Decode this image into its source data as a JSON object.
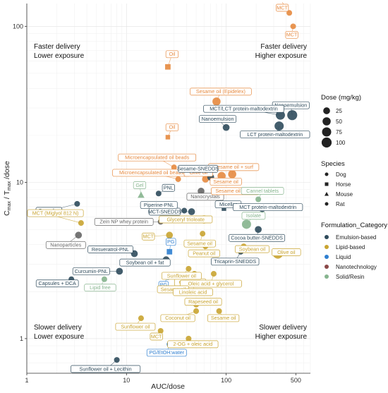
{
  "chart_data": {
    "type": "scatter",
    "xlabel": "AUC/dose",
    "ylabel": "C_max / T_max /dose",
    "xscale": "log",
    "yscale": "log",
    "xlim": [
      1,
      700
    ],
    "ylim": [
      0.6,
      140
    ],
    "xticks": [
      {
        "v": 1,
        "label": "1"
      },
      {
        "v": 10,
        "label": "10"
      },
      {
        "v": 100,
        "label": "100"
      },
      {
        "v": 500,
        "label": "500"
      }
    ],
    "yticks": [
      {
        "v": 1,
        "label": "1"
      },
      {
        "v": 10,
        "label": "10"
      },
      {
        "v": 100,
        "label": "100"
      }
    ],
    "grid": true,
    "quadrants": {
      "top_left": [
        "Faster delivery",
        "Lower exposure"
      ],
      "top_right": [
        "Faster delivery",
        "Higher exposure"
      ],
      "bottom_left": [
        "Slower delivery",
        "Lower exposure"
      ],
      "bottom_right": [
        "Slower delivery",
        "Higher exposure"
      ]
    },
    "categories": [
      {
        "name": "Emulsion-based",
        "color": "#2f4b5c"
      },
      {
        "name": "Lipid-based",
        "color": "#c9a431"
      },
      {
        "name": "Liquid",
        "color": "#2f7fd0"
      },
      {
        "name": "Nanotechnology",
        "color": "#8a4848"
      },
      {
        "name": "Solid/Resin",
        "color": "#86b48e"
      }
    ],
    "oil_color": "#e6893f",
    "legend": {
      "dose_title": "Dose (mg/kg)",
      "dose_values": [
        25,
        50,
        75,
        100
      ],
      "species_title": "Species",
      "species": [
        "Dog",
        "Horse",
        "Mouse",
        "Rat"
      ],
      "category_title": "Formulation_Category"
    },
    "points": [
      {
        "label": "MCT",
        "x": 430,
        "y": 122,
        "cat": "oil",
        "dose": 10,
        "species": "Rat"
      },
      {
        "label": "MCT",
        "x": 470,
        "y": 100,
        "cat": "oil",
        "dose": 10,
        "species": "Rat"
      },
      {
        "label": "Oil",
        "x": 26,
        "y": 55,
        "cat": "oil",
        "dose": 25,
        "species": "Horse"
      },
      {
        "label": "Sesame oil (Epidelex)",
        "x": 80,
        "y": 33,
        "cat": "oil",
        "dose": 50,
        "species": "Rat"
      },
      {
        "label": "Nanoemulsion",
        "x": 460,
        "y": 27,
        "cat": "emulsion",
        "dose": 100,
        "species": "Rat"
      },
      {
        "label": "MCT/LCT protein-maltodextrin",
        "x": 350,
        "y": 27,
        "cat": "emulsion",
        "dose": 75,
        "species": "Rat"
      },
      {
        "label": "LCT protein-maltodextrin",
        "x": 340,
        "y": 23,
        "cat": "emulsion",
        "dose": 75,
        "species": "Rat"
      },
      {
        "label": "Nanoemulsion",
        "x": 100,
        "y": 22.5,
        "cat": "emulsion",
        "dose": 25,
        "species": "Rat"
      },
      {
        "label": "Oil",
        "x": 26,
        "y": 19.5,
        "cat": "oil",
        "dose": 10,
        "species": "Horse"
      },
      {
        "label": "Microencapsulated oil beads",
        "x": 30,
        "y": 12.5,
        "cat": "oil",
        "dose": 10,
        "species": "Rat"
      },
      {
        "label": "Microencapsulated oil beads",
        "x": 33,
        "y": 10.5,
        "cat": "oil",
        "dose": 10,
        "species": "Rat"
      },
      {
        "label": "Sesame oil + surf",
        "x": 115,
        "y": 11.3,
        "cat": "oil",
        "dose": 50,
        "species": "Rat"
      },
      {
        "label": "Sesame oil",
        "x": 90,
        "y": 11,
        "cat": "oil",
        "dose": 50,
        "species": "Rat"
      },
      {
        "label": "Olive oil",
        "x": 62,
        "y": 10.5,
        "cat": "oil",
        "dose": 25,
        "species": "Rat"
      },
      {
        "label": "Sesame-SNEDDS",
        "x": 70,
        "y": 10.8,
        "cat": "emulsion",
        "dose": 25,
        "species": "Rat"
      },
      {
        "label": "Gel",
        "x": 14,
        "y": 8.3,
        "cat": "solid",
        "dose": 25,
        "species": "Mouse"
      },
      {
        "label": "PNL",
        "x": 21,
        "y": 8.5,
        "cat": "emulsion",
        "dose": 10,
        "species": "Rat"
      },
      {
        "label": "Capsules",
        "x": 3.2,
        "y": 7.3,
        "cat": "emulsion",
        "dose": 10,
        "species": "Dog"
      },
      {
        "label": "Nanocrystals",
        "x": 56,
        "y": 8.8,
        "cat": "nano",
        "dose": 25,
        "species": "Rat"
      },
      {
        "label": "Sesame oil (LCT)",
        "x": 108,
        "y": 8.8,
        "cat": "oil",
        "dose": 25,
        "species": "Rat"
      },
      {
        "label": "Cannel tablets",
        "x": 210,
        "y": 7.8,
        "cat": "solid",
        "dose": 10,
        "species": "Rat"
      },
      {
        "label": "MCT-SNEDDS",
        "x": 45,
        "y": 6.5,
        "cat": "emulsion",
        "dose": 25,
        "species": "Rat"
      },
      {
        "label": "Piperine-PNL",
        "x": 38,
        "y": 6.6,
        "cat": "emulsion",
        "dose": 10,
        "species": "Rat"
      },
      {
        "label": "Micellar",
        "x": 95,
        "y": 6.8,
        "cat": "emulsion",
        "dose": 10,
        "species": "Horse"
      },
      {
        "label": "MCT protein-maltodextrin",
        "x": 230,
        "y": 6.8,
        "cat": "emulsion",
        "dose": 25,
        "species": "Rat"
      },
      {
        "label": "MCT (Miglyol 812 N)",
        "x": 3.5,
        "y": 5.5,
        "cat": "lipid",
        "dose": 10,
        "species": "Rat"
      },
      {
        "label": "Nanoparticles",
        "x": 3.3,
        "y": 4.6,
        "cat": "nano",
        "dose": 25,
        "species": "Rat"
      },
      {
        "label": "Zein NP whey protein",
        "x": 22,
        "y": 5.6,
        "cat": "nano",
        "dose": 10,
        "species": "Rat"
      },
      {
        "label": "Glyceryl trioleate",
        "x": 60,
        "y": 5.8,
        "cat": "lipid",
        "dose": 50,
        "species": "Rat"
      },
      {
        "label": "Isolate",
        "x": 160,
        "y": 5.4,
        "cat": "solid",
        "dose": 75,
        "species": "Rat"
      },
      {
        "label": "Cocoa butter-SNEDDS",
        "x": 210,
        "y": 5,
        "cat": "emulsion",
        "dose": 25,
        "species": "Rat"
      },
      {
        "label": "MCT",
        "x": 27,
        "y": 4.6,
        "cat": "lipid",
        "dose": 25,
        "species": "Rat"
      },
      {
        "label": "Sesame oil",
        "x": 58,
        "y": 4.7,
        "cat": "lipid",
        "dose": 10,
        "species": "Rat"
      },
      {
        "label": "Peanut oil",
        "x": 62,
        "y": 3.9,
        "cat": "lipid",
        "dose": 10,
        "species": "Rat"
      },
      {
        "label": "Soybean oil",
        "x": 150,
        "y": 3.9,
        "cat": "lipid",
        "dose": 10,
        "species": "Rat"
      },
      {
        "label": "Resveratrol-PNL",
        "x": 12,
        "y": 3.5,
        "cat": "emulsion",
        "dose": 25,
        "species": "Rat"
      },
      {
        "label": "PG",
        "x": 27,
        "y": 3.6,
        "cat": "liquid",
        "dose": 25,
        "species": "Horse"
      },
      {
        "label": "Soybean oil + fat",
        "x": 25,
        "y": 3.2,
        "cat": "emulsion",
        "dose": 25,
        "species": "Rat"
      },
      {
        "label": "Tricaprin-SNEDDS",
        "x": 140,
        "y": 3.6,
        "cat": "emulsion",
        "dose": 10,
        "species": "Rat"
      },
      {
        "label": "Olive oil",
        "x": 330,
        "y": 3.5,
        "cat": "lipid",
        "dose": 100,
        "species": "Rat"
      },
      {
        "label": "Curcumin-PNL",
        "x": 8.5,
        "y": 2.7,
        "cat": "emulsion",
        "dose": 25,
        "species": "Rat"
      },
      {
        "label": "PG",
        "x": 26,
        "y": 2.5,
        "cat": "liquid",
        "dose": 25,
        "species": "Rat"
      },
      {
        "label": "Oleic acid",
        "x": 48,
        "y": 2.6,
        "cat": "lipid",
        "dose": 10,
        "species": "Rat"
      },
      {
        "label": "Sunflower oil",
        "x": 42,
        "y": 2.8,
        "cat": "lipid",
        "dose": 10,
        "species": "Rat"
      },
      {
        "label": "Oleic acid + glycerol",
        "x": 75,
        "y": 2.6,
        "cat": "lipid",
        "dose": 10,
        "species": "Rat"
      },
      {
        "label": "Capsules + DCA",
        "x": 2.8,
        "y": 2.4,
        "cat": "emulsion",
        "dose": 10,
        "species": "Dog"
      },
      {
        "label": "Lipid free",
        "x": 6,
        "y": 2.4,
        "cat": "solid",
        "dose": 10,
        "species": "Rat"
      },
      {
        "label": "Sesame oil",
        "x": 42,
        "y": 2.25,
        "cat": "lipid",
        "dose": 10,
        "species": "Rat"
      },
      {
        "label": "Linoleic acid",
        "x": 48,
        "y": 2.25,
        "cat": "lipid",
        "dose": 10,
        "species": "Rat"
      },
      {
        "label": "Rapeseed oil",
        "x": 50,
        "y": 1.65,
        "cat": "lipid",
        "dose": 10,
        "species": "Rat"
      },
      {
        "label": "Coconut oil",
        "x": 50,
        "y": 1.5,
        "cat": "lipid",
        "dose": 10,
        "species": "Rat"
      },
      {
        "label": "Sesame oil",
        "x": 85,
        "y": 1.5,
        "cat": "lipid",
        "dose": 10,
        "species": "Rat"
      },
      {
        "label": "Sunflower oil",
        "x": 14,
        "y": 1.35,
        "cat": "lipid",
        "dose": 10,
        "species": "Rat"
      },
      {
        "label": "MCT",
        "x": 22,
        "y": 1.12,
        "cat": "lipid",
        "dose": 10,
        "species": "Rat"
      },
      {
        "label": "2-OG + oleic acid",
        "x": 42,
        "y": 1,
        "cat": "lipid",
        "dose": 10,
        "species": "Rat"
      },
      {
        "label": "PG/EtOH:water",
        "x": 27,
        "y": 0.92,
        "cat": "liquid",
        "dose": 10,
        "species": "Rat"
      },
      {
        "label": "Sunflower oil + Lecithin",
        "x": 8,
        "y": 0.73,
        "cat": "emulsion",
        "dose": 10,
        "species": "Rat"
      }
    ]
  }
}
